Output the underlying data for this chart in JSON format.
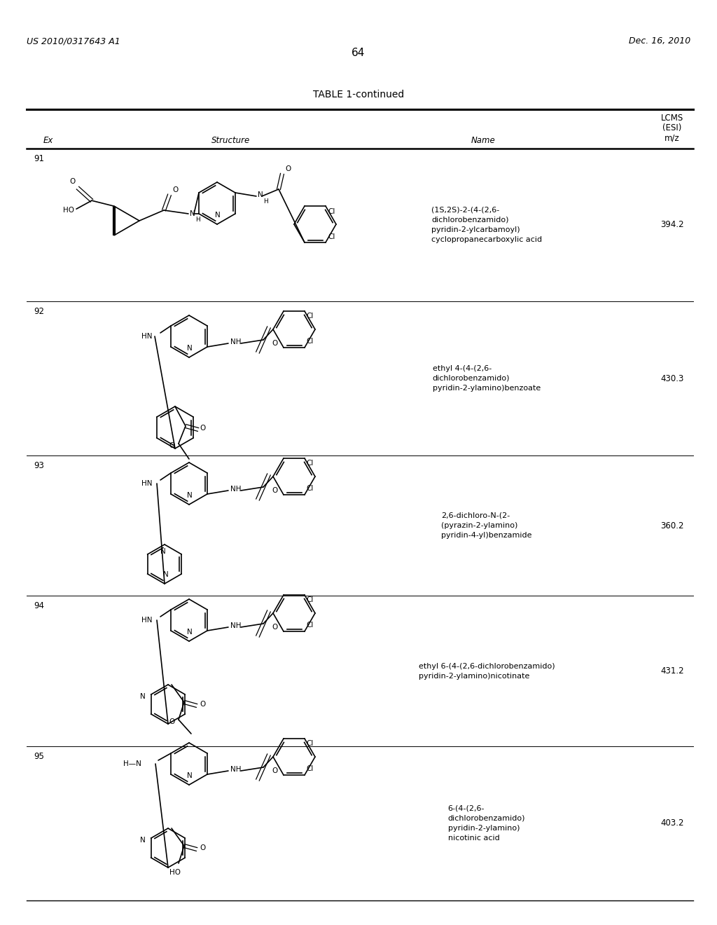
{
  "page_number": "64",
  "top_left_text": "US 2010/0317643 A1",
  "top_right_text": "Dec. 16, 2010",
  "table_title": "TABLE 1-continued",
  "rows": [
    {
      "ex": "91",
      "name": "(1S,2S)-2-(4-(2,6-\ndichlorobenzamido)\npyridin-2-ylcarbamoyl)\ncyclopropanecarboxylic acid",
      "lcms": "394.2"
    },
    {
      "ex": "92",
      "name": "ethyl 4-(4-(2,6-\ndichlorobenzamido)\npyridin-2-ylamino)benzoate",
      "lcms": "430.3"
    },
    {
      "ex": "93",
      "name": "2,6-dichloro-N-(2-\n(pyrazin-2-ylamino)\npyridin-4-yl)benzamide",
      "lcms": "360.2"
    },
    {
      "ex": "94",
      "name": "ethyl 6-(4-(2,6-dichlorobenzamido)\npyridin-2-ylamino)nicotinate",
      "lcms": "431.2"
    },
    {
      "ex": "95",
      "name": "6-(4-(2,6-\ndichlorobenzamido)\npyridin-2-ylamino)\nnicotinic acid",
      "lcms": "403.2"
    }
  ],
  "bg_color": "#ffffff",
  "text_color": "#000000",
  "line_color": "#000000"
}
